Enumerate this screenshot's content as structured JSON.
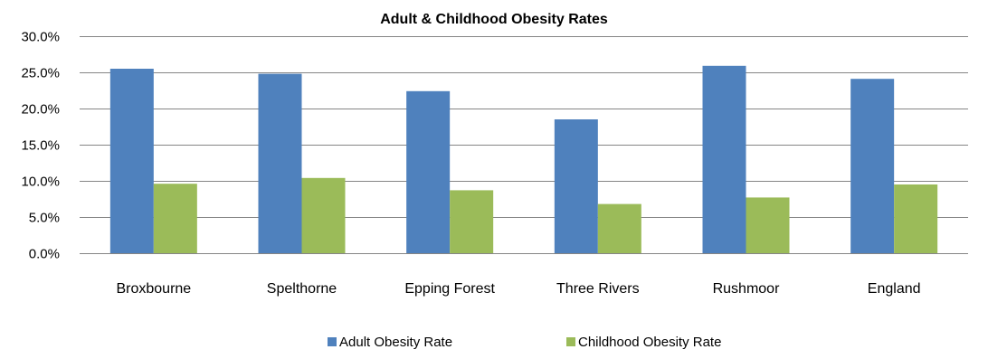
{
  "chart_data": {
    "type": "bar",
    "title": "Adult & Childhood Obesity Rates",
    "xlabel": "",
    "ylabel": "",
    "categories": [
      "Broxbourne",
      "Spelthorne",
      "Epping Forest",
      "Three Rivers",
      "Rushmoor",
      "England"
    ],
    "series": [
      {
        "name": "Adult Obesity Rate",
        "color": "#4F81BD",
        "values": [
          25.5,
          24.8,
          22.4,
          18.5,
          25.9,
          24.1
        ]
      },
      {
        "name": "Childhood Obesity Rate",
        "color": "#9BBB59",
        "values": [
          9.6,
          10.4,
          8.7,
          6.8,
          7.7,
          9.5
        ]
      }
    ],
    "ylim": [
      0,
      30
    ],
    "yticks": [
      0,
      5,
      10,
      15,
      20,
      25,
      30
    ],
    "ytick_labels": [
      "0.0%",
      "5.0%",
      "10.0%",
      "15.0%",
      "20.0%",
      "25.0%",
      "30.0%"
    ],
    "grid": true,
    "legend": "bottom"
  }
}
